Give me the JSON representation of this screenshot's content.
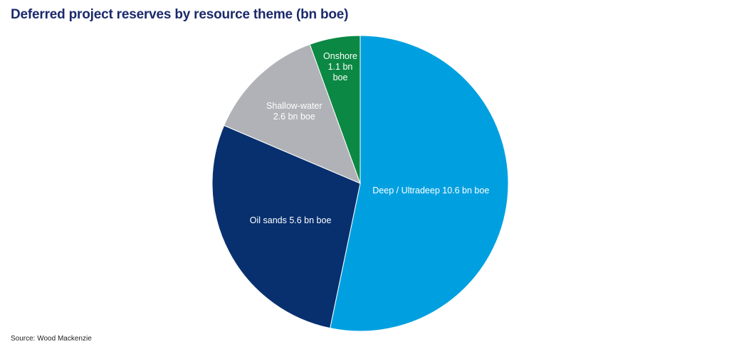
{
  "chart_data": {
    "type": "pie",
    "title": "Deferred project reserves by resource theme (bn boe)",
    "unit": "bn boe",
    "start_angle_deg": 0,
    "direction": "clockwise",
    "slices": [
      {
        "name": "Deep / Ultradeep",
        "value": 10.6,
        "label_lines": [
          "Deep / Ultradeep 10.6 bn boe"
        ],
        "color": "#00a0e0"
      },
      {
        "name": "Oil sands",
        "value": 5.6,
        "label_lines": [
          "Oil sands 5.6 bn boe"
        ],
        "color": "#08306f"
      },
      {
        "name": "Shallow-water",
        "value": 2.6,
        "label_lines": [
          "Shallow-water",
          "2.6 bn boe"
        ],
        "color": "#b0b2b7"
      },
      {
        "name": "Onshore",
        "value": 1.1,
        "label_lines": [
          "Onshore",
          "1.1 bn",
          "boe"
        ],
        "color": "#0b8843"
      }
    ],
    "source": "Source: Wood Mackenzie"
  }
}
